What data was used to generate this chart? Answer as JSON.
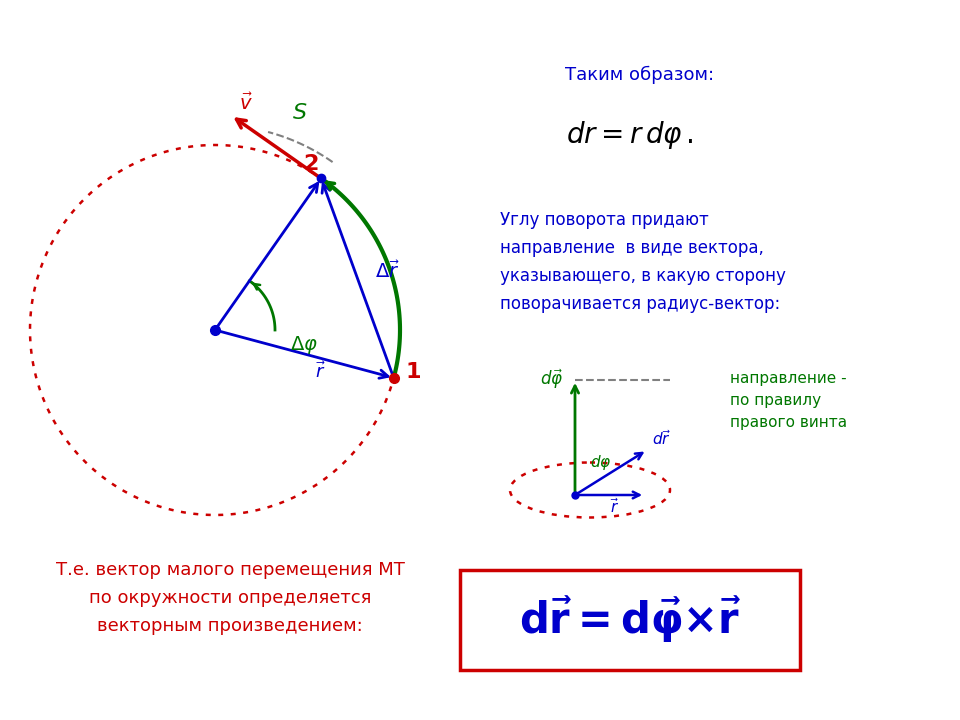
{
  "bg_color": "#ffffff",
  "circle_color": "#cc0000",
  "blue_color": "#0000cc",
  "green_color": "#007700",
  "red_color": "#cc0000",
  "text_blue": "#0000cc",
  "text_red": "#cc0000",
  "text_black": "#000000",
  "text_green": "#007700",
  "text_takim": "Таким образом:",
  "text_uglu": "Углу поворота придают",
  "text_napravlenie": "направление  в виде вектора,",
  "text_ukazyvayushego": "указывающего, в какую сторону",
  "text_povorachivaetsya": "поворачивается радиус-вектор:",
  "text_napravlenie2": "направление -",
  "text_pravilo": "по правилу",
  "text_pravogo": "правого винта",
  "text_te": "Т.е. вектор малого перемещения МТ",
  "text_po": "по окружности определяется",
  "text_vektorn": "векторным произведением:"
}
